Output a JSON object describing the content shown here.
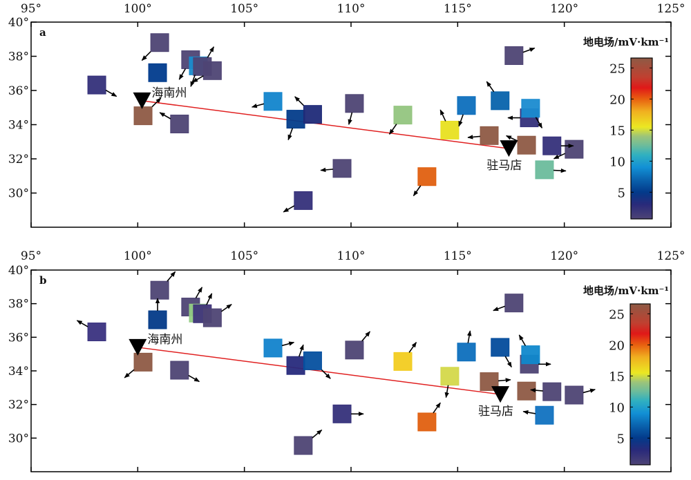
{
  "chart_data": [
    {
      "type": "scatter",
      "panel_label": "a",
      "xlim": [
        95,
        125
      ],
      "ylim": [
        28,
        40
      ],
      "x_ticks": [
        95,
        100,
        105,
        110,
        115,
        120,
        125
      ],
      "x_tick_labels": [
        "95°",
        "100°",
        "105°",
        "110°",
        "115°",
        "120°",
        "125°"
      ],
      "y_ticks": [
        30,
        32,
        34,
        36,
        38,
        40
      ],
      "y_tick_labels": [
        "30°",
        "32°",
        "34°",
        "36°",
        "38°",
        "40°"
      ],
      "colorbar": {
        "title": "地电场/mV·km⁻¹",
        "range": [
          0.7,
          26.6
        ],
        "ticks": [
          5,
          10,
          15,
          20,
          25
        ],
        "tick_labels": [
          "5",
          "10",
          "15",
          "20",
          "25"
        ]
      },
      "stations": [
        {
          "name": "海南州",
          "lon": 100.2,
          "lat": 35.4
        },
        {
          "name": "驻马店",
          "lon": 117.4,
          "lat": 32.6
        }
      ],
      "profile_line": {
        "from": [
          100.2,
          35.4
        ],
        "to": [
          117.4,
          32.6
        ],
        "color": "#e02020"
      },
      "points": [
        {
          "lon": 98.08,
          "lat": 36.32,
          "value": 2.5,
          "color": "#34307a",
          "arrow_deg": -30
        },
        {
          "lon": 101.03,
          "lat": 38.8,
          "value": 1.5,
          "color": "#4e4474",
          "arrow_deg": -135
        },
        {
          "lon": 100.93,
          "lat": 37.04,
          "value": 5,
          "color": "#003b8d",
          "arrow_deg": null
        },
        {
          "lon": 102.48,
          "lat": 37.8,
          "value": 1.5,
          "color": "#4e4474",
          "arrow_deg": -120
        },
        {
          "lon": 102.84,
          "lat": 37.44,
          "value": 10,
          "color": "#1a8ccc",
          "arrow_deg": -110
        },
        {
          "lon": 103.03,
          "lat": 37.4,
          "value": 1.5,
          "color": "#4e4474",
          "arrow_deg": 60
        },
        {
          "lon": 103.5,
          "lat": 37.16,
          "value": 1.5,
          "color": "#4e4474",
          "arrow_deg": -150
        },
        {
          "lon": 100.25,
          "lat": 34.52,
          "value": 26,
          "color": "#8e5a45",
          "arrow_deg": 45
        },
        {
          "lon": 101.96,
          "lat": 34.04,
          "value": 1.5,
          "color": "#4e4474",
          "arrow_deg": 150
        },
        {
          "lon": 106.34,
          "lat": 35.36,
          "value": 9,
          "color": "#1285cc",
          "arrow_deg": 195
        },
        {
          "lon": 107.41,
          "lat": 34.32,
          "value": 5,
          "color": "#033c8a",
          "arrow_deg": -110
        },
        {
          "lon": 108.2,
          "lat": 34.6,
          "value": 3.5,
          "color": "#1f2a78",
          "arrow_deg": 135
        },
        {
          "lon": 109.58,
          "lat": 31.44,
          "value": 1.5,
          "color": "#4e4474",
          "arrow_deg": 185
        },
        {
          "lon": 107.76,
          "lat": 29.56,
          "value": 2.5,
          "color": "#35307a",
          "arrow_deg": -150
        },
        {
          "lon": 110.16,
          "lat": 35.24,
          "value": 1.5,
          "color": "#4e4474",
          "arrow_deg": -105
        },
        {
          "lon": 112.43,
          "lat": 34.56,
          "value": 14,
          "color": "#94c57f",
          "arrow_deg": -125
        },
        {
          "lon": 114.63,
          "lat": 33.68,
          "value": 16,
          "color": "#e8e020",
          "arrow_deg": 115
        },
        {
          "lon": 115.41,
          "lat": 35.12,
          "value": 7.5,
          "color": "#0d6fbd",
          "arrow_deg": -110
        },
        {
          "lon": 116.48,
          "lat": 33.36,
          "value": 26,
          "color": "#8e5a45",
          "arrow_deg": 185
        },
        {
          "lon": 116.99,
          "lat": 35.4,
          "value": 7,
          "color": "#0763ac",
          "arrow_deg": 125
        },
        {
          "lon": 117.64,
          "lat": 38.04,
          "value": 1.5,
          "color": "#4e4474",
          "arrow_deg": 20
        },
        {
          "lon": 118.36,
          "lat": 34.4,
          "value": 2.5,
          "color": "#34307a",
          "arrow_deg": 180
        },
        {
          "lon": 118.42,
          "lat": 34.96,
          "value": 9.5,
          "color": "#1a8bd0",
          "arrow_deg": -60
        },
        {
          "lon": 118.23,
          "lat": 32.8,
          "value": 26,
          "color": "#8e5a45",
          "arrow_deg": 155
        },
        {
          "lon": 119.42,
          "lat": 32.76,
          "value": 2.5,
          "color": "#35307a",
          "arrow_deg": 0
        },
        {
          "lon": 120.46,
          "lat": 32.56,
          "value": 1.5,
          "color": "#4e4474",
          "arrow_deg": -155
        },
        {
          "lon": 119.07,
          "lat": 31.36,
          "value": 12.5,
          "color": "#6cbc9c",
          "arrow_deg": -3
        },
        {
          "lon": 113.56,
          "lat": 30.96,
          "value": 20,
          "color": "#e06010",
          "arrow_deg": -125
        }
      ]
    },
    {
      "type": "scatter",
      "panel_label": "b",
      "xlim": [
        95,
        125
      ],
      "ylim": [
        28,
        40
      ],
      "x_ticks": [
        95,
        100,
        105,
        110,
        115,
        120,
        125
      ],
      "x_tick_labels": [
        "95°",
        "100°",
        "105°",
        "110°",
        "115°",
        "120°",
        "125°"
      ],
      "y_ticks": [
        30,
        32,
        34,
        36,
        38,
        40
      ],
      "y_tick_labels": [
        "30°",
        "32°",
        "34°",
        "36°",
        "38°",
        "40°"
      ],
      "colorbar": {
        "title": "地电场/mV·km⁻¹",
        "range": [
          0.7,
          26.6
        ],
        "ticks": [
          5,
          10,
          15,
          20,
          25
        ],
        "tick_labels": [
          "5",
          "10",
          "15",
          "20",
          "25"
        ]
      },
      "stations": [
        {
          "name": "海南州",
          "lon": 100.0,
          "lat": 35.4
        },
        {
          "name": "驻马店",
          "lon": 117.0,
          "lat": 32.6
        }
      ],
      "profile_line": {
        "from": [
          100.0,
          35.4
        ],
        "to": [
          117.0,
          32.6
        ],
        "color": "#e02020"
      },
      "points": [
        {
          "lon": 98.08,
          "lat": 36.32,
          "value": 2.5,
          "color": "#3a3280",
          "arrow_deg": 150
        },
        {
          "lon": 101.03,
          "lat": 38.8,
          "value": 1.5,
          "color": "#4e4474",
          "arrow_deg": 50
        },
        {
          "lon": 100.93,
          "lat": 37.04,
          "value": 5,
          "color": "#033a88",
          "arrow_deg": 90
        },
        {
          "lon": 102.48,
          "lat": 37.8,
          "value": 1.5,
          "color": "#4e4474",
          "arrow_deg": 60
        },
        {
          "lon": 102.84,
          "lat": 37.44,
          "value": 14,
          "color": "#94cc84",
          "arrow_deg": null
        },
        {
          "lon": 103.03,
          "lat": 37.4,
          "value": 2,
          "color": "#40357a",
          "arrow_deg": 65
        },
        {
          "lon": 103.5,
          "lat": 37.16,
          "value": 1.5,
          "color": "#4e4474",
          "arrow_deg": 35
        },
        {
          "lon": 100.25,
          "lat": 34.52,
          "value": 26,
          "color": "#8e5a45",
          "arrow_deg": -140
        },
        {
          "lon": 101.96,
          "lat": 34.04,
          "value": 1.5,
          "color": "#4e4474",
          "arrow_deg": -30
        },
        {
          "lon": 106.34,
          "lat": 35.36,
          "value": 9.5,
          "color": "#1283cc",
          "arrow_deg": 15
        },
        {
          "lon": 107.41,
          "lat": 34.32,
          "value": 3,
          "color": "#272a7c",
          "arrow_deg": 70
        },
        {
          "lon": 108.2,
          "lat": 34.6,
          "value": 6,
          "color": "#05509f",
          "arrow_deg": -45
        },
        {
          "lon": 109.58,
          "lat": 31.44,
          "value": 2.5,
          "color": "#35307a",
          "arrow_deg": 0
        },
        {
          "lon": 107.76,
          "lat": 29.56,
          "value": 1.5,
          "color": "#4e4474",
          "arrow_deg": 40
        },
        {
          "lon": 110.16,
          "lat": 35.24,
          "value": 1.5,
          "color": "#4e4474",
          "arrow_deg": 50
        },
        {
          "lon": 112.43,
          "lat": 34.56,
          "value": 17.5,
          "color": "#f2cc20",
          "arrow_deg": 55
        },
        {
          "lon": 114.63,
          "lat": 33.68,
          "value": 15.5,
          "color": "#d4d84a",
          "arrow_deg": -100
        },
        {
          "lon": 115.41,
          "lat": 35.12,
          "value": 7.5,
          "color": "#0d6fbd",
          "arrow_deg": 80
        },
        {
          "lon": 116.48,
          "lat": 33.36,
          "value": 26,
          "color": "#8e5a45",
          "arrow_deg": 5
        },
        {
          "lon": 116.99,
          "lat": 35.4,
          "value": 5.5,
          "color": "#034c9c",
          "arrow_deg": -60
        },
        {
          "lon": 117.64,
          "lat": 38.04,
          "value": 1.5,
          "color": "#4e4474",
          "arrow_deg": 200
        },
        {
          "lon": 118.36,
          "lat": 34.4,
          "value": 1.5,
          "color": "#4e4474",
          "arrow_deg": 0
        },
        {
          "lon": 118.42,
          "lat": 34.96,
          "value": 9.5,
          "color": "#1088cc",
          "arrow_deg": 120
        },
        {
          "lon": 118.23,
          "lat": 32.8,
          "value": 26,
          "color": "#8e5a45",
          "arrow_deg": null
        },
        {
          "lon": 119.42,
          "lat": 32.76,
          "value": 1.5,
          "color": "#4e4474",
          "arrow_deg": 175
        },
        {
          "lon": 120.46,
          "lat": 32.56,
          "value": 1.5,
          "color": "#4e4474",
          "arrow_deg": 15
        },
        {
          "lon": 119.07,
          "lat": 31.36,
          "value": 8,
          "color": "#1172c0",
          "arrow_deg": 170
        },
        {
          "lon": 113.56,
          "lat": 30.96,
          "value": 20,
          "color": "#e06010",
          "arrow_deg": 55
        }
      ]
    }
  ],
  "colormap": [
    {
      "v": 0.7,
      "c": "#4e4476"
    },
    {
      "v": 3,
      "c": "#2a2a7a"
    },
    {
      "v": 5,
      "c": "#033a8a"
    },
    {
      "v": 7,
      "c": "#0a62ad"
    },
    {
      "v": 9,
      "c": "#1290d5"
    },
    {
      "v": 11,
      "c": "#30b0c0"
    },
    {
      "v": 12.5,
      "c": "#6cbc9c"
    },
    {
      "v": 14,
      "c": "#9cc47a"
    },
    {
      "v": 15.5,
      "c": "#ece822"
    },
    {
      "v": 18,
      "c": "#f0b020"
    },
    {
      "v": 20,
      "c": "#e86010"
    },
    {
      "v": 21.8,
      "c": "#e01818"
    },
    {
      "v": 23.5,
      "c": "#c04030"
    },
    {
      "v": 26.6,
      "c": "#8e5a45"
    }
  ]
}
